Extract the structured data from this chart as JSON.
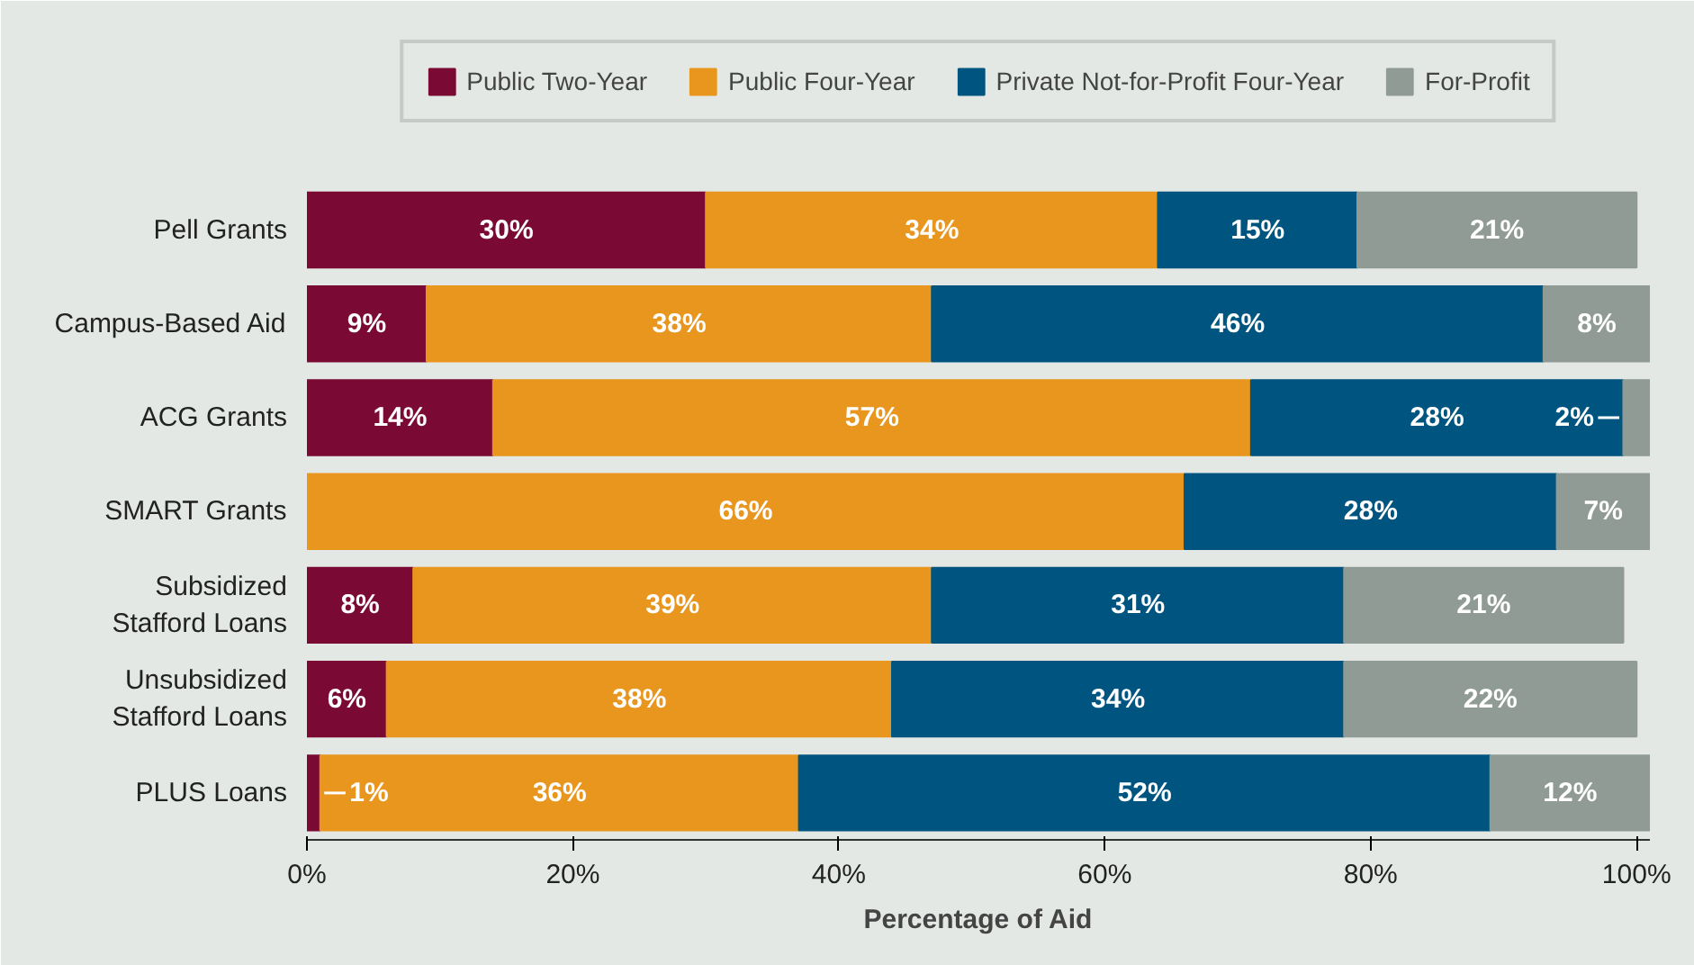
{
  "chart_data": {
    "type": "bar",
    "orientation": "horizontal",
    "stacked": true,
    "xlabel": "Percentage of Aid",
    "categories": [
      "Pell Grants",
      "Campus-Based Aid",
      "ACG Grants",
      "SMART Grants",
      "Subsidized Stafford Loans",
      "Unsubsidized Stafford Loans",
      "PLUS Loans"
    ],
    "series": [
      {
        "name": "Public Two-Year",
        "color": "#7a0a33",
        "values": [
          30,
          9,
          14,
          null,
          8,
          6,
          1
        ],
        "value_labels": [
          "30%",
          "9%",
          "14%",
          null,
          "8%",
          "6%",
          "1%"
        ]
      },
      {
        "name": "Public Four-Year",
        "color": "#e8961e",
        "values": [
          34,
          38,
          57,
          66,
          39,
          38,
          36
        ],
        "value_labels": [
          "34%",
          "38%",
          "57%",
          "66%",
          "39%",
          "38%",
          "36%"
        ]
      },
      {
        "name": "Private Not-for-Profit Four-Year",
        "color": "#005580",
        "values": [
          15,
          46,
          28,
          28,
          31,
          34,
          52
        ],
        "value_labels": [
          "15%",
          "46%",
          "28%",
          "28%",
          "31%",
          "34%",
          "52%"
        ]
      },
      {
        "name": "For-Profit",
        "color": "#8f9b94",
        "values": [
          21,
          8,
          2,
          7,
          21,
          22,
          12
        ],
        "value_labels": [
          "21%",
          "8%",
          "2%",
          "7%",
          "21%",
          "22%",
          "12%"
        ]
      }
    ],
    "xlim": [
      0,
      101
    ],
    "xticks": [
      {
        "value": 0,
        "label": "0%"
      },
      {
        "value": 20,
        "label": "20%"
      },
      {
        "value": 40,
        "label": "40%"
      },
      {
        "value": 60,
        "label": "60%"
      },
      {
        "value": 80,
        "label": "80%"
      },
      {
        "value": 100,
        "label": "100%"
      }
    ],
    "data_labels": true,
    "grid": false,
    "legend": "top"
  }
}
